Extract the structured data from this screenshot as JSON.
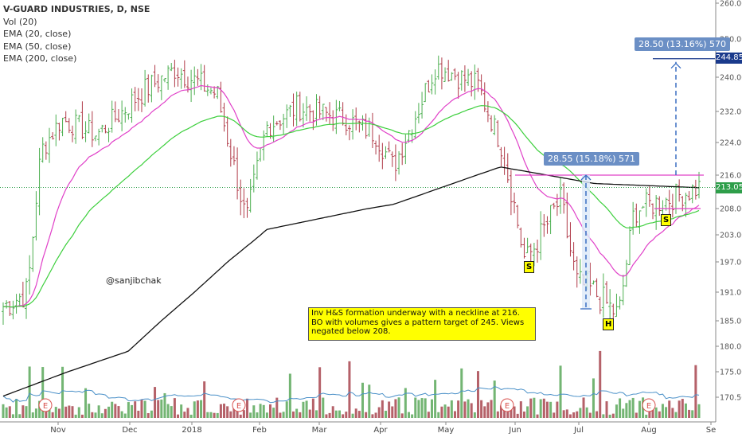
{
  "legend": {
    "symbol": "V-GUARD INDUSTRIES, D, NSE",
    "vol": "Vol (20)",
    "ema20": "EMA (20, close)",
    "ema50": "EMA (50, close)",
    "ema200": "EMA (200, close)"
  },
  "watermark": "@sanjibchak",
  "annotation": "Inv H&S formation underway with a neckline at 216. BO with volumes gives a pattern target of 245. Views negated below 208.",
  "pattern_labels": {
    "left_shoulder": "S",
    "head": "H",
    "right_shoulder": "S"
  },
  "measure_1": "28.55 (15.18%) 571",
  "measure_2": "28.50 (13.16%) 570",
  "price_tags": {
    "target": "244.85",
    "last": "213.05"
  },
  "colors": {
    "up": "#4caf50",
    "down": "#b03a48",
    "ema20": "#e040c8",
    "ema50": "#3ccf3c",
    "ema200": "#111111",
    "neckline": "#e040c8",
    "measure": "#3b6fc2",
    "volume_ma": "#4a90c8"
  },
  "chart_data": {
    "type": "candlestick",
    "symbol": "V-GUARD INDUSTRIES, D, NSE",
    "y_ticks": [
      "260.00",
      "250.00",
      "240.00",
      "232.00",
      "224.00",
      "216.00",
      "208.00",
      "203.00",
      "197.00",
      "191.00",
      "185.00",
      "180.00",
      "175.00",
      "170.50"
    ],
    "x_ticks": [
      "Nov",
      "Dec",
      "2018",
      "Feb",
      "Mar",
      "Apr",
      "May",
      "Jun",
      "Jul",
      "Aug",
      "Se"
    ],
    "price_series": [
      {
        "date": "2017-10-20",
        "close": 188
      },
      {
        "date": "2017-10-31",
        "close": 191
      },
      {
        "date": "2017-11-06",
        "close": 222
      },
      {
        "date": "2017-11-15",
        "close": 230
      },
      {
        "date": "2017-12-01",
        "close": 226
      },
      {
        "date": "2017-12-20",
        "close": 236
      },
      {
        "date": "2018-01-05",
        "close": 242
      },
      {
        "date": "2018-01-24",
        "close": 236
      },
      {
        "date": "2018-02-06",
        "close": 205
      },
      {
        "date": "2018-02-15",
        "close": 228
      },
      {
        "date": "2018-03-01",
        "close": 233
      },
      {
        "date": "2018-03-23",
        "close": 230
      },
      {
        "date": "2018-04-05",
        "close": 226
      },
      {
        "date": "2018-04-13",
        "close": 218
      },
      {
        "date": "2018-05-02",
        "close": 243
      },
      {
        "date": "2018-05-21",
        "close": 238
      },
      {
        "date": "2018-05-31",
        "close": 224
      },
      {
        "date": "2018-06-11",
        "close": 197
      },
      {
        "date": "2018-06-27",
        "close": 210
      },
      {
        "date": "2018-07-04",
        "close": 193
      },
      {
        "date": "2018-07-12",
        "close": 191
      },
      {
        "date": "2018-07-23",
        "close": 186
      },
      {
        "date": "2018-07-30",
        "close": 208
      },
      {
        "date": "2018-08-13",
        "close": 210
      },
      {
        "date": "2018-08-28",
        "close": 213.05
      }
    ],
    "ema200": [
      {
        "date": "2017-10-20",
        "value": 170.7
      },
      {
        "date": "2017-12-15",
        "value": 179
      },
      {
        "date": "2018-02-15",
        "value": 204
      },
      {
        "date": "2018-04-13",
        "value": 209
      },
      {
        "date": "2018-05-31",
        "value": 218
      },
      {
        "date": "2018-07-12",
        "value": 214
      },
      {
        "date": "2018-08-28",
        "value": 213
      }
    ],
    "annotations": {
      "neckline": 216,
      "pattern_target": 245,
      "negation_level": 208,
      "measure_1": {
        "change": 28.55,
        "percent": 15.18,
        "bars": 571
      },
      "measure_2": {
        "change": 28.5,
        "percent": 13.16,
        "bars": 570
      }
    },
    "last_price": 213.05,
    "target_price": 244.85,
    "grid": false
  }
}
